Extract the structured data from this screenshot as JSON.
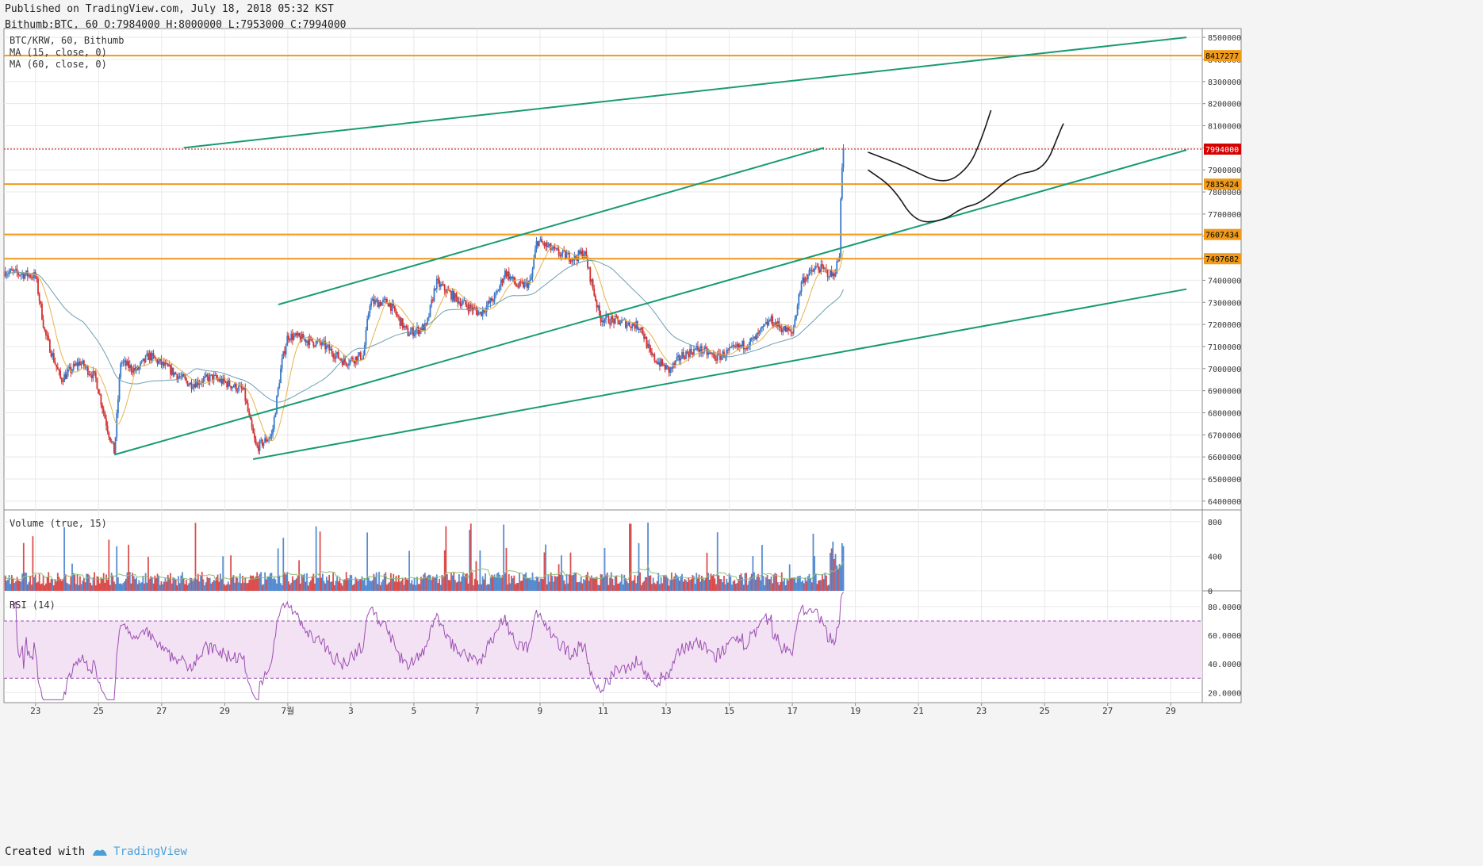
{
  "header": {
    "published": "Published on TradingView.com, July 18, 2018 05:32 KST",
    "ohlc": "Bithumb:BTC, 60 O:7984000 H:8000000 L:7953000 C:7994000"
  },
  "footer": {
    "created_with": "Created with",
    "brand": "TradingView"
  },
  "colors": {
    "up": "#3b78c9",
    "down": "#d4302f",
    "ma15": "#e8b34a",
    "ma60": "#6a9fb5",
    "channel": "#179b73",
    "hline": "#ef9a1a",
    "rsi": "#9c4fb5",
    "rsi_band": "#f3e2f3",
    "last_price": "#d50000",
    "grid": "#e8e8e8"
  },
  "chart_data": [
    {
      "type": "candlestick",
      "legend": [
        "BTC/KRW, 60, Bithumb",
        "MA (15, close, 0)",
        "MA (60, close, 0)"
      ],
      "x_ticks": [
        "23",
        "25",
        "27",
        "29",
        "7월",
        "3",
        "5",
        "7",
        "9",
        "11",
        "13",
        "15",
        "17",
        "19",
        "21",
        "23",
        "25",
        "27",
        "29"
      ],
      "y_ticks": [
        6400000,
        6500000,
        6600000,
        6700000,
        6800000,
        6900000,
        7000000,
        7100000,
        7200000,
        7300000,
        7400000,
        7500000,
        7600000,
        7700000,
        7800000,
        7900000,
        8000000,
        8100000,
        8200000,
        8300000,
        8400000,
        8500000
      ],
      "ylim": [
        6360000,
        8540000
      ],
      "xlim": [
        0.0,
        38.0
      ],
      "x_unit": "days since June 22, 2018",
      "last_price": 7994000,
      "horizontal_levels": [
        8417277,
        7835424,
        7607434,
        7497682
      ],
      "trend_lines": [
        {
          "x": [
            5.7,
            37.5
          ],
          "y": [
            8000000,
            8500000
          ]
        },
        {
          "x": [
            3.5,
            37.5
          ],
          "y": [
            6610000,
            7990000
          ]
        },
        {
          "x": [
            7.9,
            37.5
          ],
          "y": [
            6590000,
            7360000
          ]
        },
        {
          "x": [
            8.7,
            26.0
          ],
          "y": [
            7290000,
            8000000
          ]
        }
      ],
      "key_points": [
        {
          "x": 0.0,
          "y": 7440000
        },
        {
          "x": 1.0,
          "y": 7420000
        },
        {
          "x": 1.3,
          "y": 7160000
        },
        {
          "x": 1.8,
          "y": 6950000
        },
        {
          "x": 2.4,
          "y": 7030000
        },
        {
          "x": 2.9,
          "y": 6960000
        },
        {
          "x": 3.3,
          "y": 6720000
        },
        {
          "x": 3.5,
          "y": 6620000
        },
        {
          "x": 3.7,
          "y": 7030000
        },
        {
          "x": 4.2,
          "y": 6990000
        },
        {
          "x": 4.6,
          "y": 7060000
        },
        {
          "x": 5.2,
          "y": 7000000
        },
        {
          "x": 5.9,
          "y": 6930000
        },
        {
          "x": 6.6,
          "y": 6960000
        },
        {
          "x": 7.3,
          "y": 6920000
        },
        {
          "x": 7.6,
          "y": 6900000
        },
        {
          "x": 7.8,
          "y": 6760000
        },
        {
          "x": 8.0,
          "y": 6640000
        },
        {
          "x": 8.5,
          "y": 6700000
        },
        {
          "x": 8.8,
          "y": 7020000
        },
        {
          "x": 9.0,
          "y": 7150000
        },
        {
          "x": 9.6,
          "y": 7130000
        },
        {
          "x": 10.1,
          "y": 7110000
        },
        {
          "x": 10.8,
          "y": 7030000
        },
        {
          "x": 11.4,
          "y": 7060000
        },
        {
          "x": 11.6,
          "y": 7300000
        },
        {
          "x": 12.2,
          "y": 7300000
        },
        {
          "x": 12.8,
          "y": 7160000
        },
        {
          "x": 13.4,
          "y": 7190000
        },
        {
          "x": 13.7,
          "y": 7390000
        },
        {
          "x": 14.4,
          "y": 7310000
        },
        {
          "x": 15.1,
          "y": 7250000
        },
        {
          "x": 15.6,
          "y": 7330000
        },
        {
          "x": 15.9,
          "y": 7440000
        },
        {
          "x": 16.3,
          "y": 7370000
        },
        {
          "x": 16.7,
          "y": 7390000
        },
        {
          "x": 16.9,
          "y": 7580000
        },
        {
          "x": 17.6,
          "y": 7520000
        },
        {
          "x": 18.1,
          "y": 7500000
        },
        {
          "x": 18.4,
          "y": 7530000
        },
        {
          "x": 18.9,
          "y": 7230000
        },
        {
          "x": 19.6,
          "y": 7210000
        },
        {
          "x": 20.2,
          "y": 7190000
        },
        {
          "x": 20.5,
          "y": 7060000
        },
        {
          "x": 21.1,
          "y": 6990000
        },
        {
          "x": 21.5,
          "y": 7060000
        },
        {
          "x": 22.0,
          "y": 7090000
        },
        {
          "x": 22.6,
          "y": 7050000
        },
        {
          "x": 23.2,
          "y": 7090000
        },
        {
          "x": 23.8,
          "y": 7130000
        },
        {
          "x": 24.3,
          "y": 7220000
        },
        {
          "x": 24.7,
          "y": 7180000
        },
        {
          "x": 25.0,
          "y": 7160000
        },
        {
          "x": 25.3,
          "y": 7400000
        },
        {
          "x": 25.8,
          "y": 7460000
        },
        {
          "x": 26.3,
          "y": 7420000
        },
        {
          "x": 26.5,
          "y": 7510000
        },
        {
          "x": 26.55,
          "y": 7880000
        },
        {
          "x": 26.62,
          "y": 7994000
        }
      ],
      "drawings": [
        {
          "x": [
            27.4,
            28.5,
            29.8,
            30.6,
            31.0,
            31.3
          ],
          "y": [
            7980000,
            7920000,
            7830000,
            7910000,
            8040000,
            8170000
          ]
        },
        {
          "x": [
            27.4,
            28.2,
            28.9,
            29.8,
            30.4,
            31.0,
            32.0,
            33.0,
            33.5,
            33.6
          ],
          "y": [
            7900000,
            7820000,
            7660000,
            7670000,
            7730000,
            7750000,
            7880000,
            7900000,
            8080000,
            8110000
          ]
        }
      ]
    },
    {
      "type": "bar",
      "legend": "Volume (true, 15)",
      "y_ticks": [
        0,
        400,
        800
      ],
      "ylim": [
        0,
        900
      ]
    },
    {
      "type": "line",
      "legend": "RSI (14)",
      "y_ticks": [
        20.0,
        40.0,
        60.0,
        80.0
      ],
      "ylim": [
        13,
        91
      ],
      "bands": [
        30,
        70
      ]
    }
  ]
}
